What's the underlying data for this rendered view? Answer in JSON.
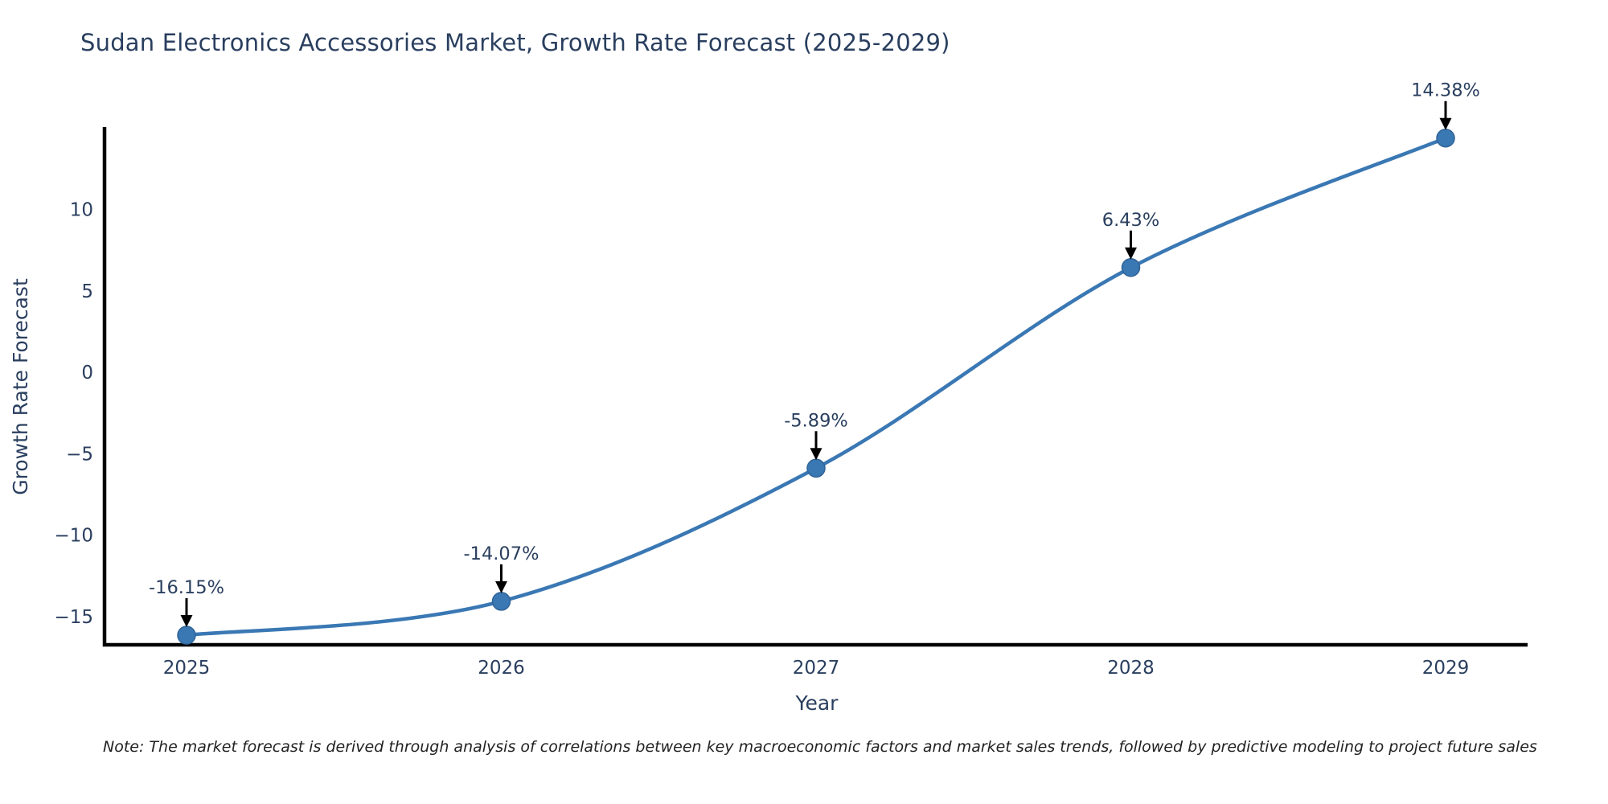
{
  "chart": {
    "title": "Sudan Electronics Accessories Market, Growth Rate Forecast (2025-2029)",
    "note": "Note: The market forecast is derived through analysis of correlations between key macroeconomic factors and market sales trends, followed by predictive modeling to project future sales"
  },
  "chart_data": {
    "type": "line",
    "title": "Sudan Electronics Accessories Market, Growth Rate Forecast (2025-2029)",
    "xlabel": "Year",
    "ylabel": "Growth Rate Forecast",
    "categories": [
      "2025",
      "2026",
      "2027",
      "2028",
      "2029"
    ],
    "values": [
      -16.15,
      -14.07,
      -5.89,
      6.43,
      14.38
    ],
    "point_labels": [
      "-16.15%",
      "-14.07%",
      "-5.89%",
      "6.43%",
      "14.38%"
    ],
    "yticks": [
      10,
      5,
      0,
      -5,
      -10,
      -15
    ],
    "ylim": [
      -16.74,
      14.96
    ],
    "line_shape": "spline",
    "grid": false,
    "legend_position": "none",
    "colors": {
      "line": "#3a78b4",
      "marker_fill": "#3a78b4",
      "marker_stroke": "#2f6397",
      "axis_line": "#000000",
      "tick_text": "#2a3f5f",
      "axis_title_text": "#2a3f5f",
      "annotation_text": "#2a3f5f",
      "arrow": "#000000",
      "background": "#ffffff"
    }
  }
}
